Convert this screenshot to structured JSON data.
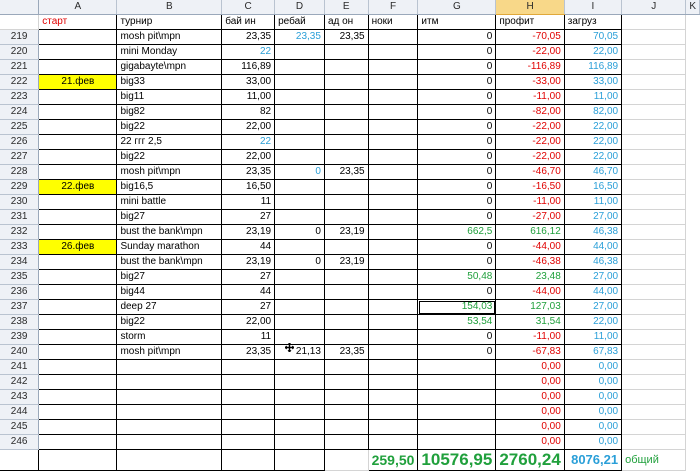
{
  "columns": [
    "A",
    "B",
    "C",
    "D",
    "E",
    "F",
    "G",
    "H",
    "I",
    "J",
    "K"
  ],
  "selected_column": "H",
  "headers": {
    "a": "",
    "b": "старт",
    "c": "турнир",
    "d": "бай ин",
    "e": "ребай",
    "f": "ад он",
    "g": "ноки",
    "h": "итм",
    "i": "профит",
    "j": "загруз",
    "k": ""
  },
  "rows": [
    {
      "n": "219",
      "date": "",
      "t": "mosh pit\\mpn",
      "d": "23,35",
      "e": "23,35",
      "f": "23,35",
      "h": "0",
      "i": "-70,05",
      "j": "70,05"
    },
    {
      "n": "220",
      "date": "",
      "t": "mini Monday",
      "d": "22",
      "e": "",
      "f": "",
      "h": "0",
      "i": "-22,00",
      "j": "22,00"
    },
    {
      "n": "221",
      "date": "",
      "t": "gigabayte\\mpn",
      "d": "116,89",
      "e": "",
      "f": "",
      "h": "0",
      "i": "-116,89",
      "j": "116,89"
    },
    {
      "n": "222",
      "date": "21.фев",
      "t": "big33",
      "d": "33,00",
      "e": "",
      "f": "",
      "h": "0",
      "i": "-33,00",
      "j": "33,00"
    },
    {
      "n": "223",
      "date": "",
      "t": "big11",
      "d": "11,00",
      "e": "",
      "f": "",
      "h": "0",
      "i": "-11,00",
      "j": "11,00"
    },
    {
      "n": "224",
      "date": "",
      "t": "big82",
      "d": "82",
      "e": "",
      "f": "",
      "h": "0",
      "i": "-82,00",
      "j": "82,00"
    },
    {
      "n": "225",
      "date": "",
      "t": "big22",
      "d": "22,00",
      "e": "",
      "f": "",
      "h": "0",
      "i": "-22,00",
      "j": "22,00"
    },
    {
      "n": "226",
      "date": "",
      "t": "22 ггг 2,5",
      "d": "22",
      "e": "",
      "f": "",
      "h": "0",
      "i": "-22,00",
      "j": "22,00"
    },
    {
      "n": "227",
      "date": "",
      "t": "big22",
      "d": "22,00",
      "e": "",
      "f": "",
      "h": "0",
      "i": "-22,00",
      "j": "22,00"
    },
    {
      "n": "228",
      "date": "",
      "t": "mosh pit\\mpn",
      "d": "23,35",
      "e": "0",
      "f": "23,35",
      "h": "0",
      "i": "-46,70",
      "j": "46,70"
    },
    {
      "n": "229",
      "date": "22.фев",
      "t": "big16,5",
      "d": "16,50",
      "e": "",
      "f": "",
      "h": "0",
      "i": "-16,50",
      "j": "16,50"
    },
    {
      "n": "230",
      "date": "",
      "t": "mini battle",
      "d": "11",
      "e": "",
      "f": "",
      "h": "0",
      "i": "-11,00",
      "j": "11,00"
    },
    {
      "n": "231",
      "date": "",
      "t": "big27",
      "d": "27",
      "e": "",
      "f": "",
      "h": "0",
      "i": "-27,00",
      "j": "27,00"
    },
    {
      "n": "232",
      "date": "",
      "t": "bust the bank\\mpn",
      "d": "23,19",
      "e": "0",
      "f": "23,19",
      "h": "662,5",
      "i": "616,12",
      "j": "46,38"
    },
    {
      "n": "233",
      "date": "26.фев",
      "t": "Sunday marathon",
      "d": "44",
      "e": "",
      "f": "",
      "h": "0",
      "i": "-44,00",
      "j": "44,00"
    },
    {
      "n": "234",
      "date": "",
      "t": "bust the bank\\mpn",
      "d": "23,19",
      "e": "0",
      "f": "23,19",
      "h": "0",
      "i": "-46,38",
      "j": "46,38"
    },
    {
      "n": "235",
      "date": "",
      "t": "big27",
      "d": "27",
      "e": "",
      "f": "",
      "h": "50,48",
      "i": "23,48",
      "j": "27,00"
    },
    {
      "n": "236",
      "date": "",
      "t": "big44",
      "d": "44",
      "e": "",
      "f": "",
      "h": "0",
      "i": "-44,00",
      "j": "44,00"
    },
    {
      "n": "237",
      "date": "",
      "t": "deep 27",
      "d": "27",
      "e": "",
      "f": "",
      "h": "154,03",
      "i": "127,03",
      "j": "27,00"
    },
    {
      "n": "238",
      "date": "",
      "t": "big22",
      "d": "22,00",
      "e": "",
      "f": "",
      "h": "53,54",
      "i": "31,54",
      "j": "22,00"
    },
    {
      "n": "239",
      "date": "",
      "t": "storm",
      "d": "11",
      "e": "",
      "f": "",
      "h": "0",
      "i": "-11,00",
      "j": "11,00"
    },
    {
      "n": "240",
      "date": "",
      "t": "mosh pit\\mpn",
      "d": "23,35",
      "e": "21,13",
      "f": "23,35",
      "h": "0",
      "i": "-67,83",
      "j": "67,83"
    },
    {
      "n": "241",
      "date": "",
      "t": "",
      "d": "",
      "e": "",
      "f": "",
      "h": "",
      "i": "0,00",
      "j": "0,00"
    },
    {
      "n": "242",
      "date": "",
      "t": "",
      "d": "",
      "e": "",
      "f": "",
      "h": "",
      "i": "0,00",
      "j": "0,00"
    },
    {
      "n": "243",
      "date": "",
      "t": "",
      "d": "",
      "e": "",
      "f": "",
      "h": "",
      "i": "0,00",
      "j": "0,00"
    },
    {
      "n": "244",
      "date": "",
      "t": "",
      "d": "",
      "e": "",
      "f": "",
      "h": "",
      "i": "0,00",
      "j": "0,00"
    },
    {
      "n": "245",
      "date": "",
      "t": "",
      "d": "",
      "e": "",
      "f": "",
      "h": "",
      "i": "0,00",
      "j": "0,00"
    },
    {
      "n": "246",
      "date": "",
      "t": "",
      "d": "",
      "e": "",
      "f": "",
      "h": "",
      "i": "0,00",
      "j": "0,00"
    }
  ],
  "totals": {
    "g": "259,50",
    "h": "10576,95",
    "i": "2760,24",
    "j": "8076,21",
    "k": "общий"
  },
  "colors": {
    "negative": "#e00000",
    "positive": "#20a03c",
    "load": "#2a9fd8",
    "date_highlight": "#ffff00"
  }
}
